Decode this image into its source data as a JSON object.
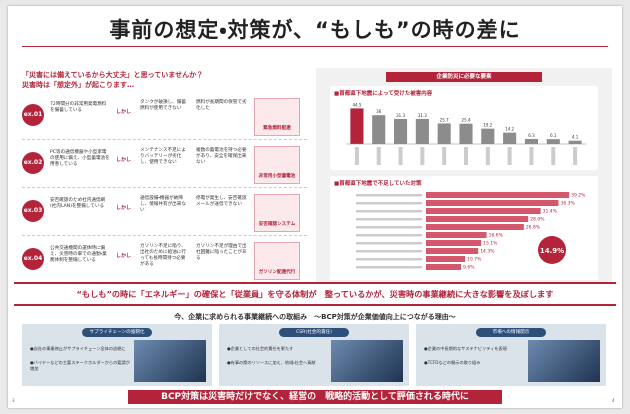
{
  "header": {
    "title": "事前の想定・対策が、“もしも”の時の差に"
  },
  "left": {
    "lead1": "「災害には備えているから大丈夫」と思っていませんか？",
    "lead2": "災害時は「想定外」が起こります…",
    "rows": [
      {
        "num": "ex.01",
        "prep": "72時間分の非常用発電燃料を備蓄している",
        "but": "しかし",
        "case1": "タンクが破損し、備蓄燃料が使用できない",
        "case2": "燃料が長期間の保管で劣化した",
        "solution": "緊急燃料配達"
      },
      {
        "num": "ex.02",
        "prep": "PC等の通信機器や小型家電の使用に備え、小型蓄電池を用意している",
        "but": "しかし",
        "case1": "メンテナンス不足によりバッテリーが劣化し、使用できない",
        "case2": "複数の蓄電池を持つ必要があり、安全を確保出来ない",
        "solution": "非常用小型蓄電池"
      },
      {
        "num": "ex.03",
        "prep": "安否確認のため社内通信網(社内LAN)を整備している",
        "but": "しかし",
        "case1": "通信設備・機器が故障し、情報共有が出来ない",
        "case2": "停電が発生し、安否確認メールが送信できない",
        "solution": "安否確認システム"
      },
      {
        "num": "ex.04",
        "prep": "公共交通機関の運休時に備え、災害時の車での通勤・業務体制を整備している",
        "but": "しかし",
        "case1": "ガソリン不足に陥り、出社のために給油に行っても長時間待つ必要がある",
        "case2": "ガソリン不足が理由で出社困難に陥ったことがある",
        "solution": "ガソリン配達代行"
      }
    ]
  },
  "panel_title": "企業防災に必要な要素",
  "chart_data": [
    {
      "type": "bar",
      "title": "■首都直下地震によって受けた被害内容",
      "categories": [
        null,
        null,
        null,
        null,
        null,
        null,
        null,
        null,
        null,
        null,
        null
      ],
      "values": [
        44.5,
        36.0,
        31.3,
        31.3,
        25.7,
        25.4,
        19.2,
        14.2,
        6.3,
        6.1,
        4.1
      ],
      "colors": [
        "#b3243a",
        "#8c8c8c"
      ],
      "ylim": [
        0,
        50
      ]
    },
    {
      "type": "hbar",
      "title": "■首都直下地震で不足していた対策",
      "categories": [
        null,
        null,
        null,
        null,
        null,
        null,
        null,
        null,
        null,
        null
      ],
      "values": [
        39.2,
        36.3,
        31.4,
        28.0,
        26.8,
        16.6,
        15.1,
        14.3,
        10.7,
        9.6
      ],
      "value_labels": [
        "39.2%",
        "36.3%",
        "31.4%",
        "28.0%",
        "26.8%",
        "16.6%",
        "15.1%",
        "14.3%",
        "10.7%",
        "9.6%"
      ],
      "color": "#d4576b",
      "xlim": [
        0,
        40
      ],
      "callout": "14.9%"
    }
  ],
  "banner": "“もしも”の時に「エネルギー」の確保と「従業員」を守る体制が　整っているかが、災害時の事業継続に大きな影響を及ぼします",
  "bottom": {
    "title": "今、企業に求められる事業継続への取組み　～BCP対策が企業価値向上につながる理由～",
    "cards": [
      {
        "title": "サプライチェーンの強靭化",
        "points": [
          "●自社の事業停止がサプライチェーン全体の途絶に",
          "●バイヤーなどの主要ステークホルダーからの要請が増加"
        ]
      },
      {
        "title": "CSR(社会的責任)",
        "points": [
          "●企業としての社会的責任を果たす",
          "●有事の際のリソースに加え、地域・社会へ貢献"
        ]
      },
      {
        "title": "市場への情報開示",
        "points": [
          "●企業の中長期的なサステナビリティを表現",
          "●TCFDなどの開示の取り組み"
        ]
      }
    ]
  },
  "footer": "BCP対策は災害時だけでなく、経営の　戦略的活動として評価される時代に",
  "pages": [
    "3",
    "4"
  ]
}
